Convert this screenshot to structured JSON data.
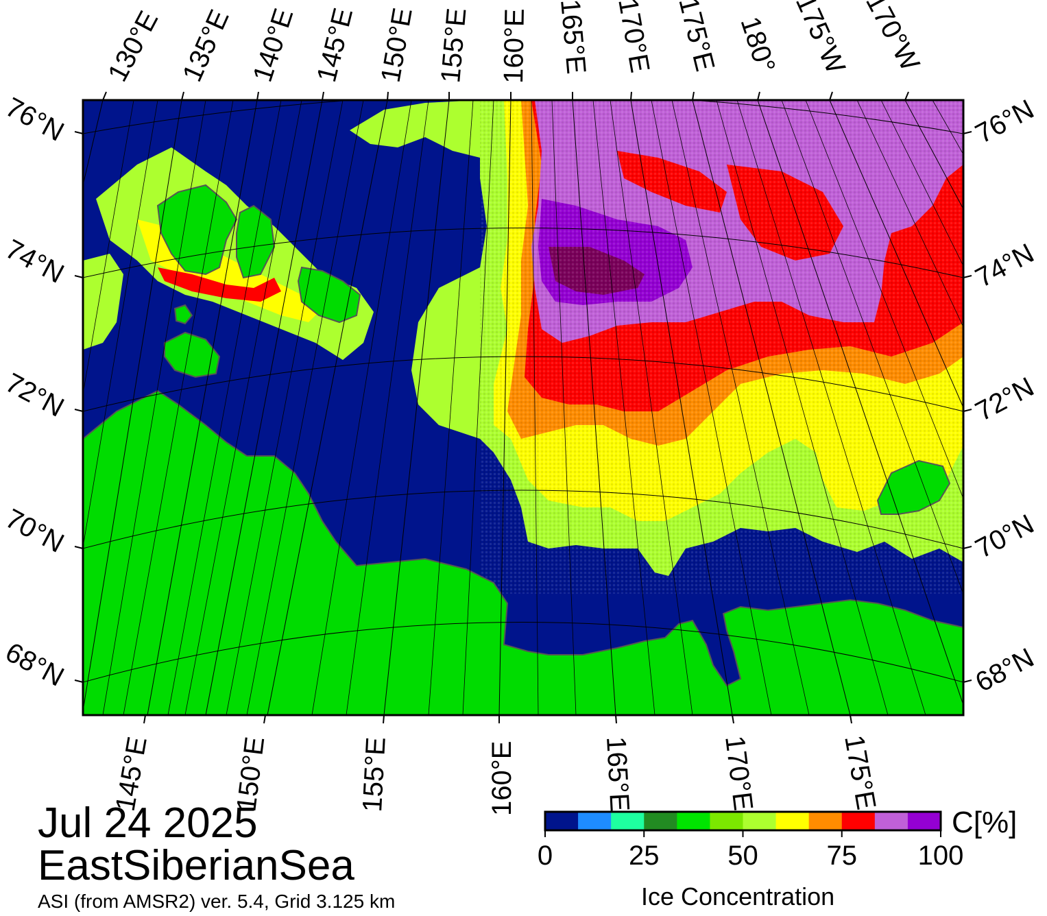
{
  "header": {
    "date": "Jul 24 2025",
    "region": "EastSiberianSea",
    "source": "ASI (from AMSR2) ver. 5.4,  Grid 3.125 km"
  },
  "colorbar": {
    "unit": "C[%]",
    "title": "Ice Concentration",
    "ticks": [
      "0",
      "25",
      "50",
      "75",
      "100"
    ],
    "colors": [
      "#00148c",
      "#1e8cff",
      "#1effa0",
      "#228b22",
      "#00e400",
      "#7ce800",
      "#adff2f",
      "#ffff00",
      "#ff8c00",
      "#ff0000",
      "#c060d8",
      "#9400d3"
    ],
    "range": [
      0,
      100
    ]
  },
  "map": {
    "lat_labels": [
      "76°N",
      "74°N",
      "72°N",
      "70°N",
      "68°N"
    ],
    "top_lon_labels": [
      "130°E",
      "135°E",
      "140°E",
      "145°E",
      "150°E",
      "155°E",
      "160°E",
      "165°E",
      "170°E",
      "175°E",
      "180°",
      "175°W",
      "170°W"
    ],
    "bottom_lon_labels": [
      "145°E",
      "150°E",
      "155°E",
      "160°E",
      "165°E",
      "170°E",
      "175°E"
    ],
    "colors": {
      "ocean": "#00148c",
      "land": "#00dc00",
      "coast": "#555555",
      "frame": "#000000"
    }
  }
}
